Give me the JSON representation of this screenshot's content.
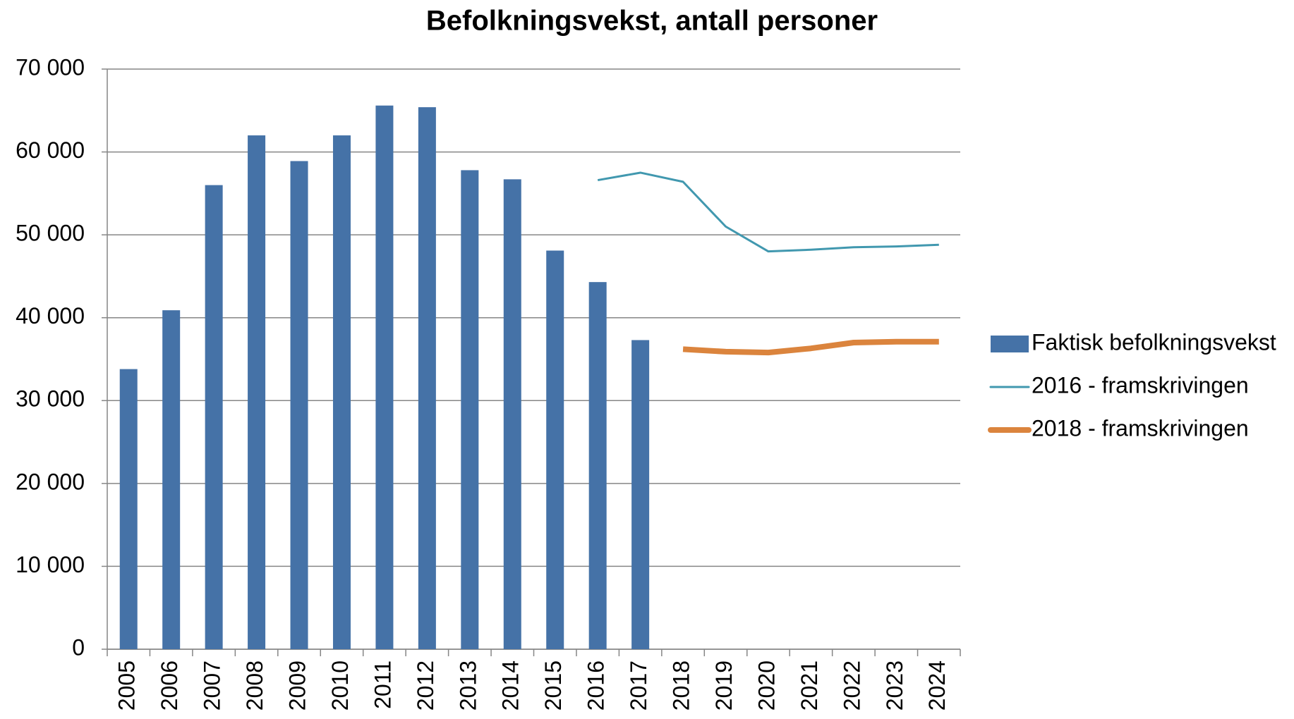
{
  "chart_data": {
    "type": "bar",
    "title": "Befolkningsvekst, antall personer",
    "categories": [
      "2005",
      "2006",
      "2007",
      "2008",
      "2009",
      "2010",
      "2011",
      "2012",
      "2013",
      "2014",
      "2015",
      "2016",
      "2017",
      "2018",
      "2019",
      "2020",
      "2021",
      "2022",
      "2023",
      "2024"
    ],
    "series": [
      {
        "name": "Faktisk befolkningsvekst",
        "type": "bar",
        "color": "#4572a7",
        "values": [
          33800,
          40900,
          56000,
          62000,
          58900,
          62000,
          65600,
          65400,
          57800,
          56700,
          48100,
          44300,
          37300,
          null,
          null,
          null,
          null,
          null,
          null,
          null
        ]
      },
      {
        "name": "2016 - framskrivingen",
        "type": "line",
        "color": "#4198af",
        "width": 3,
        "values": [
          null,
          null,
          null,
          null,
          null,
          null,
          null,
          null,
          null,
          null,
          null,
          56600,
          57500,
          56400,
          51000,
          48000,
          48200,
          48500,
          48600,
          48800
        ]
      },
      {
        "name": "2018 - framskrivingen",
        "type": "line",
        "color": "#db843d",
        "width": 8,
        "values": [
          null,
          null,
          null,
          null,
          null,
          null,
          null,
          null,
          null,
          null,
          null,
          null,
          null,
          36200,
          35900,
          35800,
          36300,
          37000,
          37100,
          37100
        ]
      }
    ],
    "ylim": [
      0,
      70000
    ],
    "yticks": [
      0,
      {
        "value": 10000,
        "label": "10 000"
      },
      {
        "value": 20000,
        "label": "20 000"
      },
      {
        "value": 30000,
        "label": "30 000"
      },
      {
        "value": 40000,
        "label": "40 000"
      },
      {
        "value": 50000,
        "label": "50 000"
      },
      {
        "value": 60000,
        "label": "60 000"
      },
      {
        "value": 70000,
        "label": "70 000"
      }
    ],
    "grid": true,
    "legend": "right"
  }
}
